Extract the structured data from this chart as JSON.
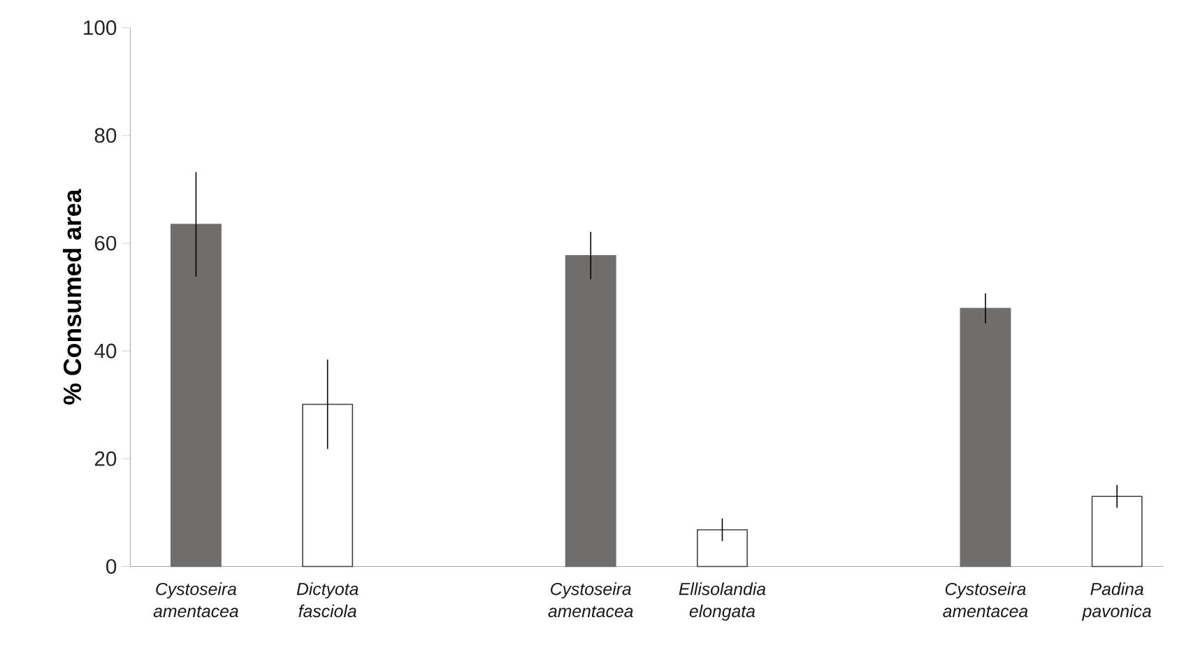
{
  "chart_data": {
    "type": "bar",
    "ylabel": "%  Consumed area",
    "categories": [
      "Cystoseira amentacea",
      "Dictyota fasciola",
      null,
      "Cystoseira amentacea",
      "Ellisolandia elongata",
      null,
      "Cystoseira amentacea",
      "Padina pavonica"
    ],
    "values": [
      63.5,
      30.1,
      null,
      57.7,
      6.8,
      null,
      47.9,
      13.0
    ],
    "errors": [
      9.7,
      8.3,
      null,
      4.4,
      2.1,
      null,
      2.8,
      2.1
    ],
    "colors": [
      "#6f6e6c",
      "#ffffff",
      null,
      "#6f6e6c",
      "#ffffff",
      null,
      "#6f6e6c",
      "#ffffff"
    ],
    "ylim": [
      0,
      100
    ],
    "yticks": [
      0,
      20,
      40,
      60,
      80,
      100
    ],
    "grid": false
  }
}
